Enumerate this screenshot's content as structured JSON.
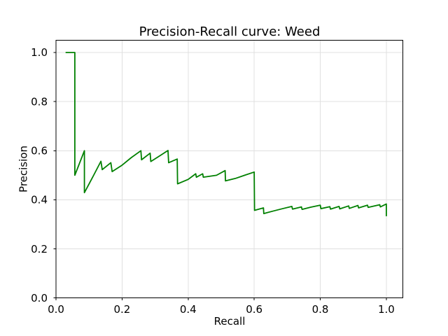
{
  "figure": {
    "background": "#ffffff"
  },
  "chart_data": {
    "type": "line",
    "title": "Precision-Recall curve: Weed",
    "xlabel": "Recall",
    "ylabel": "Precision",
    "xlim": [
      0.0,
      1.05
    ],
    "ylim": [
      0.0,
      1.05
    ],
    "x_ticks": [
      0.0,
      0.2,
      0.4,
      0.6,
      0.8,
      1.0
    ],
    "x_tick_labels": [
      "0.0",
      "0.2",
      "0.4",
      "0.6",
      "0.8",
      "1.0"
    ],
    "y_ticks": [
      0.0,
      0.2,
      0.4,
      0.6,
      0.8,
      1.0
    ],
    "y_tick_labels": [
      "0.0",
      "0.2",
      "0.4",
      "0.6",
      "0.8",
      "1.0"
    ],
    "grid": true,
    "grid_color": "#e0e0e0",
    "axis_color": "#000000",
    "line_color": "#008000",
    "line_width": 1.8,
    "legend": "none",
    "series": [
      {
        "name": "precision-recall-weed",
        "points": [
          [
            0.029,
            1.0
          ],
          [
            0.057,
            1.0
          ],
          [
            0.057,
            0.5
          ],
          [
            0.086,
            0.6
          ],
          [
            0.086,
            0.429
          ],
          [
            0.114,
            0.5
          ],
          [
            0.136,
            0.557
          ],
          [
            0.14,
            0.523
          ],
          [
            0.166,
            0.551
          ],
          [
            0.17,
            0.515
          ],
          [
            0.2,
            0.541
          ],
          [
            0.228,
            0.572
          ],
          [
            0.257,
            0.6
          ],
          [
            0.259,
            0.563
          ],
          [
            0.285,
            0.59
          ],
          [
            0.287,
            0.556
          ],
          [
            0.314,
            0.579
          ],
          [
            0.339,
            0.601
          ],
          [
            0.341,
            0.551
          ],
          [
            0.367,
            0.566
          ],
          [
            0.368,
            0.465
          ],
          [
            0.4,
            0.483
          ],
          [
            0.423,
            0.506
          ],
          [
            0.425,
            0.492
          ],
          [
            0.444,
            0.506
          ],
          [
            0.446,
            0.492
          ],
          [
            0.486,
            0.5
          ],
          [
            0.512,
            0.519
          ],
          [
            0.513,
            0.477
          ],
          [
            0.543,
            0.487
          ],
          [
            0.571,
            0.5
          ],
          [
            0.6,
            0.513
          ],
          [
            0.601,
            0.357
          ],
          [
            0.628,
            0.367
          ],
          [
            0.629,
            0.344
          ],
          [
            0.657,
            0.354
          ],
          [
            0.686,
            0.364
          ],
          [
            0.714,
            0.373
          ],
          [
            0.716,
            0.362
          ],
          [
            0.743,
            0.371
          ],
          [
            0.745,
            0.361
          ],
          [
            0.771,
            0.37
          ],
          [
            0.8,
            0.378
          ],
          [
            0.802,
            0.364
          ],
          [
            0.829,
            0.372
          ],
          [
            0.831,
            0.362
          ],
          [
            0.857,
            0.373
          ],
          [
            0.859,
            0.363
          ],
          [
            0.886,
            0.375
          ],
          [
            0.888,
            0.365
          ],
          [
            0.914,
            0.377
          ],
          [
            0.916,
            0.367
          ],
          [
            0.943,
            0.378
          ],
          [
            0.945,
            0.369
          ],
          [
            0.98,
            0.38
          ],
          [
            0.982,
            0.371
          ],
          [
            1.0,
            0.383
          ],
          [
            1.0,
            0.333
          ]
        ]
      }
    ]
  }
}
